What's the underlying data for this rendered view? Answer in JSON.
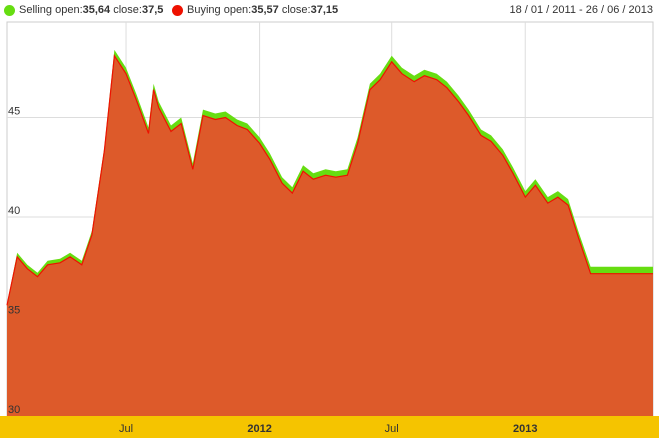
{
  "legend": {
    "selling_label": "Selling",
    "selling_open_label": "open:",
    "selling_open": "35,64",
    "selling_close_label": "close:",
    "selling_close": "37,5",
    "buying_label": "Buying",
    "buying_open_label": "open:",
    "buying_open": "35,57",
    "buying_close_label": "close:",
    "buying_close": "37,15",
    "date_range": "18 / 01 / 2011 - 26 / 06 / 2013"
  },
  "colors": {
    "selling": "#66dd11",
    "buying": "#ee1100",
    "area_fill": "#dd5a2a",
    "axis_band": "#f5c400",
    "grid": "#dddddd"
  },
  "chart_data": {
    "type": "area",
    "ylim": [
      30,
      49.8
    ],
    "xlim": [
      "2011-01-18",
      "2013-06-26"
    ],
    "yticks": [
      "30",
      "35",
      "40",
      "45"
    ],
    "xticks": [
      {
        "label": "Jul",
        "date": "2011-07-01",
        "bold": false
      },
      {
        "label": "2012",
        "date": "2012-01-01",
        "bold": true
      },
      {
        "label": "Jul",
        "date": "2012-07-01",
        "bold": false
      },
      {
        "label": "2013",
        "date": "2013-01-01",
        "bold": true
      }
    ],
    "grid": true,
    "series": [
      {
        "name": "Selling",
        "x": [
          "2011-01-18",
          "2011-02-01",
          "2011-02-15",
          "2011-03-01",
          "2011-03-15",
          "2011-04-01",
          "2011-04-15",
          "2011-05-01",
          "2011-05-15",
          "2011-06-01",
          "2011-06-15",
          "2011-07-01",
          "2011-07-15",
          "2011-08-01",
          "2011-08-08",
          "2011-08-15",
          "2011-09-01",
          "2011-09-15",
          "2011-10-01",
          "2011-10-15",
          "2011-11-01",
          "2011-11-15",
          "2011-12-01",
          "2011-12-15",
          "2012-01-01",
          "2012-01-15",
          "2012-02-01",
          "2012-02-15",
          "2012-03-01",
          "2012-03-15",
          "2012-04-01",
          "2012-04-15",
          "2012-05-01",
          "2012-05-15",
          "2012-06-01",
          "2012-06-15",
          "2012-07-01",
          "2012-07-15",
          "2012-08-01",
          "2012-08-15",
          "2012-09-01",
          "2012-09-15",
          "2012-10-01",
          "2012-10-15",
          "2012-11-01",
          "2012-11-15",
          "2012-12-01",
          "2012-12-15",
          "2013-01-01",
          "2013-01-15",
          "2013-02-01",
          "2013-02-15",
          "2013-03-01",
          "2013-03-15",
          "2013-04-01",
          "2013-04-15",
          "2013-05-01",
          "2013-05-15",
          "2013-06-01",
          "2013-06-15",
          "2013-06-26"
        ],
        "values": [
          35.64,
          38.2,
          37.6,
          37.2,
          37.8,
          37.9,
          38.2,
          37.8,
          39.3,
          43.5,
          48.4,
          47.5,
          46.2,
          44.5,
          46.7,
          45.8,
          44.6,
          45.0,
          42.7,
          45.4,
          45.2,
          45.3,
          44.9,
          44.7,
          44.0,
          43.2,
          42.0,
          41.5,
          42.6,
          42.2,
          42.4,
          42.3,
          42.4,
          44.0,
          46.7,
          47.2,
          48.1,
          47.5,
          47.1,
          47.4,
          47.2,
          46.8,
          46.1,
          45.4,
          44.4,
          44.1,
          43.4,
          42.5,
          41.3,
          41.9,
          41.0,
          41.3,
          40.9,
          39.3,
          37.5,
          37.5,
          37.5,
          37.5,
          37.5,
          37.5,
          37.5
        ]
      },
      {
        "name": "Buying",
        "x": [
          "2011-01-18",
          "2011-02-01",
          "2011-02-15",
          "2011-03-01",
          "2011-03-15",
          "2011-04-01",
          "2011-04-15",
          "2011-05-01",
          "2011-05-15",
          "2011-06-01",
          "2011-06-15",
          "2011-07-01",
          "2011-07-15",
          "2011-08-01",
          "2011-08-08",
          "2011-08-15",
          "2011-09-01",
          "2011-09-15",
          "2011-10-01",
          "2011-10-15",
          "2011-11-01",
          "2011-11-15",
          "2011-12-01",
          "2011-12-15",
          "2012-01-01",
          "2012-01-15",
          "2012-02-01",
          "2012-02-15",
          "2012-03-01",
          "2012-03-15",
          "2012-04-01",
          "2012-04-15",
          "2012-05-01",
          "2012-05-15",
          "2012-06-01",
          "2012-06-15",
          "2012-07-01",
          "2012-07-15",
          "2012-08-01",
          "2012-08-15",
          "2012-09-01",
          "2012-09-15",
          "2012-10-01",
          "2012-10-15",
          "2012-11-01",
          "2012-11-15",
          "2012-12-01",
          "2012-12-15",
          "2013-01-01",
          "2013-01-15",
          "2013-02-01",
          "2013-02-15",
          "2013-03-01",
          "2013-03-15",
          "2013-04-01",
          "2013-04-15",
          "2013-05-01",
          "2013-05-15",
          "2013-06-01",
          "2013-06-15",
          "2013-06-26"
        ],
        "values": [
          35.57,
          38.0,
          37.4,
          37.0,
          37.6,
          37.7,
          38.0,
          37.6,
          39.1,
          43.3,
          48.1,
          47.2,
          45.9,
          44.2,
          46.4,
          45.5,
          44.3,
          44.7,
          42.4,
          45.1,
          44.9,
          45.0,
          44.6,
          44.4,
          43.7,
          42.9,
          41.7,
          41.2,
          42.3,
          41.9,
          42.1,
          42.0,
          42.1,
          43.7,
          46.4,
          46.9,
          47.8,
          47.2,
          46.8,
          47.1,
          46.9,
          46.5,
          45.8,
          45.1,
          44.1,
          43.8,
          43.1,
          42.2,
          41.0,
          41.6,
          40.7,
          41.0,
          40.6,
          39.0,
          37.15,
          37.15,
          37.15,
          37.15,
          37.15,
          37.15,
          37.15
        ]
      }
    ]
  }
}
